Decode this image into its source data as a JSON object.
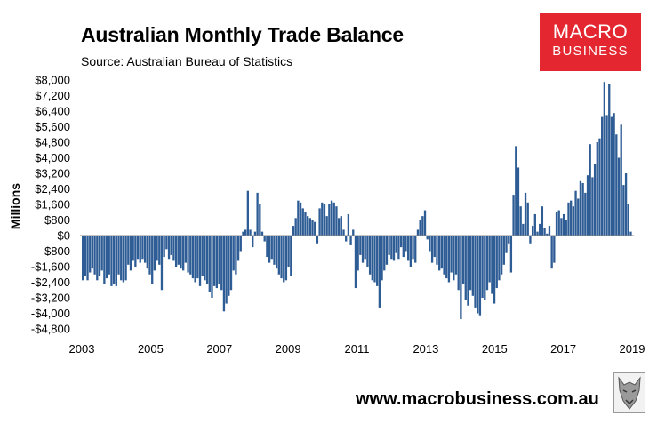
{
  "header": {
    "title": "Australian Monthly Trade Balance",
    "subtitle": "Source: Australian Bureau of Statistics"
  },
  "logo": {
    "line1": "MACRO",
    "line2": "BUSINESS",
    "color": "#e3262f"
  },
  "footer": {
    "url": "www.macrobusiness.com.au",
    "emblem": "wolf-head-icon"
  },
  "colors": {
    "bar": "#2e5c95",
    "bar_edge": "#1d3f6b",
    "background": "#ffffff"
  },
  "chart_data": {
    "type": "bar",
    "ylabel": "Millions",
    "xlabel": "",
    "ylim": [
      -4800,
      8000
    ],
    "yticks": [
      8000,
      7200,
      6400,
      5600,
      4800,
      4000,
      3200,
      2400,
      1600,
      800,
      0,
      -800,
      -1600,
      -2400,
      -3200,
      -4000,
      -4800
    ],
    "ytick_labels": [
      "$8,000",
      "$7,200",
      "$6,400",
      "$5,600",
      "$4,800",
      "$4,000",
      "$3,200",
      "$2,400",
      "$1,600",
      "$800",
      "$0",
      "-$800",
      "-$1,600",
      "-$2,400",
      "-$3,200",
      "-$4,000",
      "-$4,800"
    ],
    "xticks": [
      "2003",
      "2005",
      "2007",
      "2009",
      "2011",
      "2013",
      "2015",
      "2017",
      "2019"
    ],
    "grid": false,
    "legend": "none",
    "x_start": "2003-01",
    "x_end": "2019-01",
    "frequency": "monthly",
    "values": [
      -2300,
      -2100,
      -2300,
      -1900,
      -1700,
      -2000,
      -2300,
      -2100,
      -1800,
      -2500,
      -2200,
      -2000,
      -2600,
      -2500,
      -2600,
      -2000,
      -2300,
      -2400,
      -2300,
      -1500,
      -1800,
      -1300,
      -1600,
      -1200,
      -1400,
      -1200,
      -1400,
      -1700,
      -2000,
      -2500,
      -1800,
      -1300,
      -1500,
      -2800,
      -1100,
      -700,
      -1200,
      -1000,
      -1300,
      -1600,
      -1500,
      -1700,
      -1800,
      -1400,
      -1900,
      -2000,
      -2200,
      -2400,
      -2200,
      -2600,
      -2100,
      -2300,
      -2500,
      -2900,
      -3200,
      -2600,
      -2700,
      -2500,
      -2800,
      -3900,
      -3500,
      -3100,
      -2800,
      -1800,
      -2000,
      -1300,
      -800,
      200,
      300,
      2300,
      300,
      -600,
      200,
      2200,
      1600,
      200,
      -300,
      -1100,
      -1400,
      -1200,
      -1500,
      -1700,
      -2000,
      -2200,
      -2400,
      -2300,
      -1600,
      -2100,
      500,
      900,
      1800,
      1700,
      1400,
      1200,
      1000,
      900,
      800,
      700,
      -400,
      1400,
      1700,
      1600,
      1000,
      1600,
      1800,
      1700,
      1500,
      900,
      1000,
      300,
      -300,
      1100,
      -500,
      300,
      -2700,
      -1800,
      -1000,
      -1400,
      -1200,
      -1600,
      -2000,
      -2300,
      -2400,
      -2600,
      -3700,
      -2300,
      -1800,
      -1500,
      -1000,
      -1200,
      -1300,
      -900,
      -1200,
      -600,
      -1100,
      -800,
      -1300,
      -1600,
      -1200,
      -1400,
      300,
      800,
      1000,
      1300,
      -200,
      -800,
      -1400,
      -1100,
      -1500,
      -1800,
      -1700,
      -2000,
      -2200,
      -2400,
      -1900,
      -2300,
      -2000,
      -2800,
      -4300,
      -2500,
      -3300,
      -3600,
      -2800,
      -3100,
      -3700,
      -4000,
      -4100,
      -3200,
      -3300,
      -2800,
      -2400,
      -3000,
      -3500,
      -2700,
      -2300,
      -2000,
      -1500,
      -900,
      -400,
      -1900,
      2100,
      4600,
      3500,
      1500,
      600,
      2200,
      1700,
      -400,
      500,
      1100,
      200,
      600,
      1500,
      400,
      100,
      500,
      -1700,
      -1400,
      1200,
      1300,
      900,
      1100,
      800,
      1700,
      1800,
      1500,
      2300,
      1900,
      2800,
      2700,
      2200,
      3100,
      4700,
      3000,
      3700,
      4800,
      5000,
      6100,
      7900,
      6200,
      7800,
      6100,
      6300,
      5200,
      4000,
      5700,
      2600,
      3200,
      1600,
      200
    ]
  }
}
